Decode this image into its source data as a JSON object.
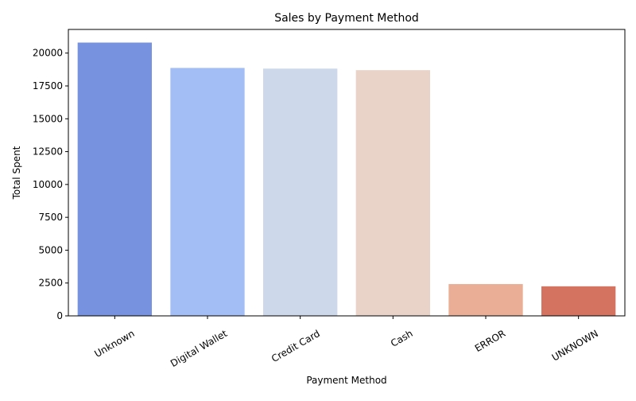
{
  "chart_data": {
    "type": "bar",
    "title": "Sales by Payment Method",
    "xlabel": "Payment Method",
    "ylabel": "Total Spent",
    "categories": [
      "Unknown",
      "Digital Wallet",
      "Credit Card",
      "Cash",
      "ERROR",
      "UNKNOWN"
    ],
    "values": [
      20800,
      18870,
      18820,
      18700,
      2420,
      2250
    ],
    "colors": [
      "#7793e0",
      "#a3bdf5",
      "#cdd9eb",
      "#e9d2c8",
      "#eaae96",
      "#d4735f"
    ],
    "ylim": [
      0,
      21800
    ],
    "yticks": [
      0,
      2500,
      5000,
      7500,
      10000,
      12500,
      15000,
      17500,
      20000
    ],
    "ytick_labels": [
      "0",
      "2500",
      "5000",
      "7500",
      "10000",
      "12500",
      "15000",
      "17500",
      "20000"
    ],
    "grid": false,
    "legend": "none"
  }
}
